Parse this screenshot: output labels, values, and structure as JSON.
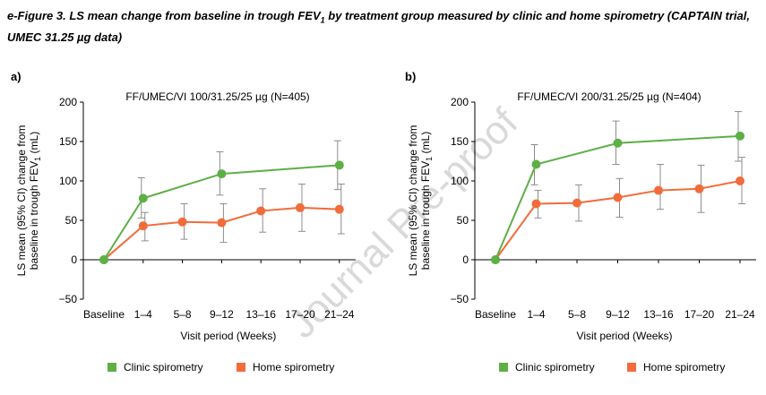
{
  "caption": {
    "line1_pre": "e-Figure 3. LS mean change from baseline in trough FEV",
    "line1_sub": "1",
    "line1_post": " by treatment group measured by clinic and home spirometry (CAPTAIN trial,",
    "line2": "UMEC 31.25 µg data)"
  },
  "watermark": "Journal Pre-proof",
  "legend": {
    "clinic": "Clinic spirometry",
    "home": "Home spirometry"
  },
  "colors": {
    "clinic": "#5daf46",
    "home": "#f26b3a",
    "error_bar": "#8c8c8c"
  },
  "chart_data": [
    {
      "panel_label": "a)",
      "type": "line",
      "title": "FF/UMEC/VI 100/31.25/25 µg (N=405)",
      "xlabel": "Visit period (Weeks)",
      "ylabel_line1": "LS mean (95% CI) change from",
      "ylabel_line2_pre": "baseline in trough FEV",
      "ylabel_line2_sub": "1",
      "ylabel_line2_post": " (mL)",
      "ylim": [
        -50,
        200
      ],
      "yticks": [
        "−50",
        "0",
        "50",
        "100",
        "150",
        "200"
      ],
      "categories": [
        "Baseline",
        "1–4",
        "5–8",
        "9–12",
        "13–16",
        "17–20",
        "21–24"
      ],
      "series": [
        {
          "name": "Clinic spirometry",
          "points": [
            {
              "x": "Baseline",
              "y": 0
            },
            {
              "x": "1–4",
              "y": 78,
              "ci": [
                53,
                104
              ]
            },
            {
              "x": "9–12",
              "y": 109,
              "ci": [
                82,
                137
              ]
            },
            {
              "x": "21–24",
              "y": 120,
              "ci": [
                89,
                151
              ]
            }
          ]
        },
        {
          "name": "Home spirometry",
          "points": [
            {
              "x": "Baseline",
              "y": 0
            },
            {
              "x": "1–4",
              "y": 43,
              "ci": [
                24,
                60
              ]
            },
            {
              "x": "5–8",
              "y": 48,
              "ci": [
                26,
                71
              ]
            },
            {
              "x": "9–12",
              "y": 47,
              "ci": [
                22,
                71
              ]
            },
            {
              "x": "13–16",
              "y": 62,
              "ci": [
                35,
                90
              ]
            },
            {
              "x": "17–20",
              "y": 66,
              "ci": [
                36,
                96
              ]
            },
            {
              "x": "21–24",
              "y": 64,
              "ci": [
                33,
                96
              ]
            }
          ]
        }
      ]
    },
    {
      "panel_label": "b)",
      "type": "line",
      "title": "FF/UMEC/VI 200/31.25/25 µg (N=404)",
      "xlabel": "Visit period (Weeks)",
      "ylabel_line1": "LS mean (95% CI) change from",
      "ylabel_line2_pre": "baseline in trough FEV",
      "ylabel_line2_sub": "1",
      "ylabel_line2_post": " (mL)",
      "ylim": [
        -50,
        200
      ],
      "yticks": [
        "−50",
        "0",
        "50",
        "100",
        "150",
        "200"
      ],
      "categories": [
        "Baseline",
        "1–4",
        "5–8",
        "9–12",
        "13–16",
        "17–20",
        "21–24"
      ],
      "series": [
        {
          "name": "Clinic spirometry",
          "points": [
            {
              "x": "Baseline",
              "y": 0
            },
            {
              "x": "1–4",
              "y": 121,
              "ci": [
                95,
                146
              ]
            },
            {
              "x": "9–12",
              "y": 148,
              "ci": [
                121,
                176
              ]
            },
            {
              "x": "21–24",
              "y": 157,
              "ci": [
                125,
                188
              ]
            }
          ]
        },
        {
          "name": "Home spirometry",
          "points": [
            {
              "x": "Baseline",
              "y": 0
            },
            {
              "x": "1–4",
              "y": 71,
              "ci": [
                53,
                88
              ]
            },
            {
              "x": "5–8",
              "y": 72,
              "ci": [
                49,
                95
              ]
            },
            {
              "x": "9–12",
              "y": 79,
              "ci": [
                54,
                103
              ]
            },
            {
              "x": "13–16",
              "y": 88,
              "ci": [
                64,
                121
              ]
            },
            {
              "x": "17–20",
              "y": 90,
              "ci": [
                60,
                120
              ]
            },
            {
              "x": "21–24",
              "y": 100,
              "ci": [
                71,
                130
              ]
            }
          ]
        }
      ]
    }
  ]
}
